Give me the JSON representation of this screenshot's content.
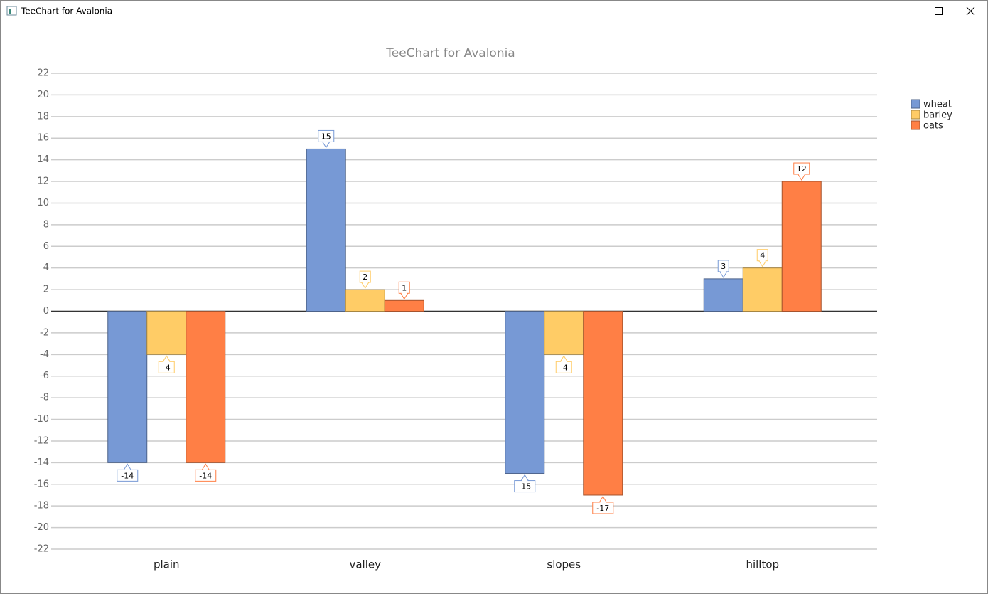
{
  "window_title": "TeeChart for Avalonia",
  "chart_data": {
    "type": "bar",
    "title": "TeeChart for Avalonia",
    "categories": [
      "plain",
      "valley",
      "slopes",
      "hilltop"
    ],
    "series": [
      {
        "name": "wheat",
        "color": "#7799d5",
        "values": [
          -14,
          15,
          -15,
          3
        ]
      },
      {
        "name": "barley",
        "color": "#ffcc66",
        "values": [
          -4,
          2,
          -4,
          4
        ]
      },
      {
        "name": "oats",
        "color": "#ff7f45",
        "values": [
          -14,
          1,
          -17,
          12
        ]
      }
    ],
    "ylim": [
      -22,
      22
    ],
    "yticks": [
      -22,
      -20,
      -18,
      -16,
      -14,
      -12,
      -10,
      -8,
      -6,
      -4,
      -2,
      0,
      2,
      4,
      6,
      8,
      10,
      12,
      14,
      16,
      18,
      20,
      22
    ],
    "grid": true,
    "legend": "top-right"
  }
}
